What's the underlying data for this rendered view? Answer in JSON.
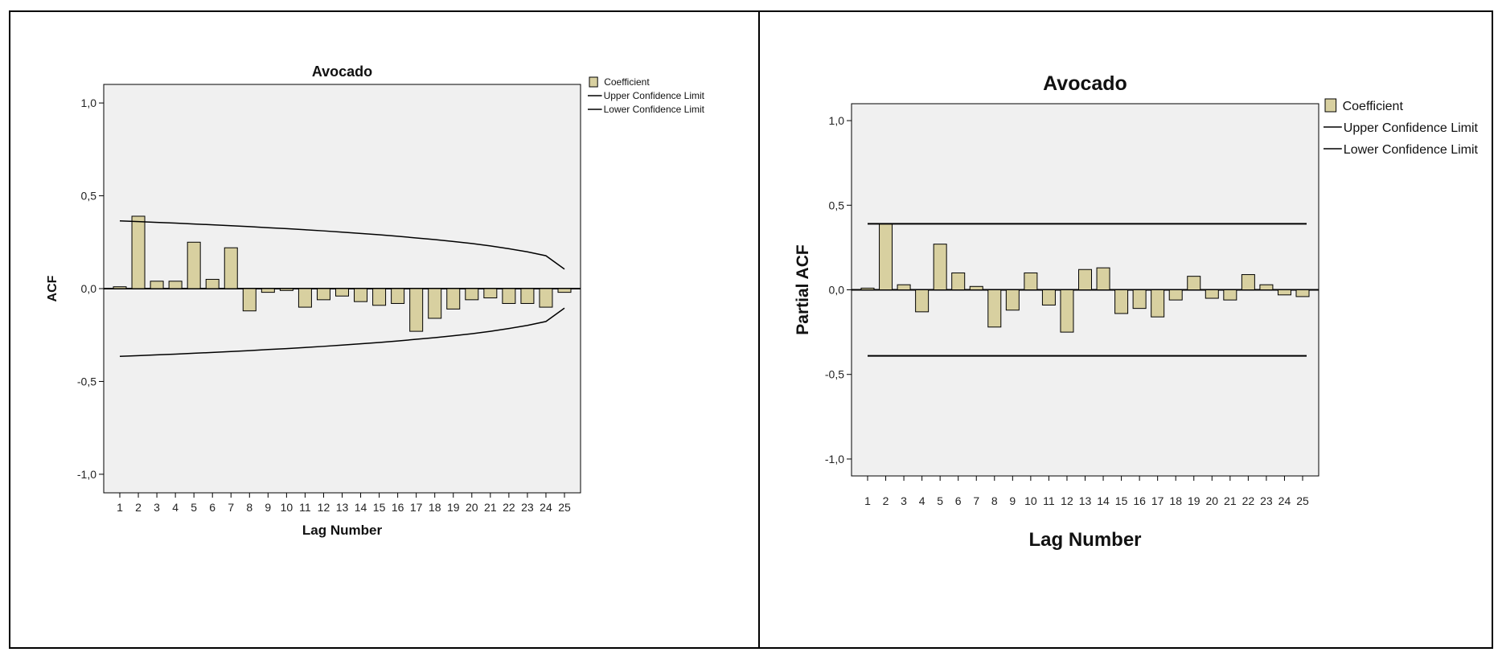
{
  "colors": {
    "bar_fill": "#d8d0a0",
    "bar_stroke": "#000000",
    "plot_bg": "#f0f0f0",
    "line": "#000000"
  },
  "chart_data": [
    {
      "type": "bar",
      "title": "Avocado",
      "xlabel": "Lag Number",
      "ylabel": "ACF",
      "ylim": [
        -1.1,
        1.1
      ],
      "yticks": [
        "1,0",
        "0,5",
        "0,0",
        "-0,5",
        "-1,0"
      ],
      "ytick_values": [
        1.0,
        0.5,
        0.0,
        -0.5,
        -1.0
      ],
      "categories": [
        "1",
        "2",
        "3",
        "4",
        "5",
        "6",
        "7",
        "8",
        "9",
        "10",
        "11",
        "12",
        "13",
        "14",
        "15",
        "16",
        "17",
        "18",
        "19",
        "20",
        "21",
        "22",
        "23",
        "24",
        "25"
      ],
      "series": [
        {
          "name": "Coefficient",
          "values": [
            0.01,
            0.39,
            0.04,
            0.04,
            0.25,
            0.05,
            0.22,
            -0.12,
            -0.02,
            -0.01,
            -0.1,
            -0.06,
            -0.04,
            -0.07,
            -0.09,
            -0.08,
            -0.23,
            -0.16,
            -0.11,
            -0.06,
            -0.05,
            -0.08,
            -0.08,
            -0.1,
            -0.02
          ]
        }
      ],
      "confidence_limits": {
        "upper": [
          0.365,
          0.361,
          0.357,
          0.353,
          0.348,
          0.344,
          0.339,
          0.334,
          0.328,
          0.323,
          0.317,
          0.311,
          0.304,
          0.297,
          0.29,
          0.282,
          0.273,
          0.264,
          0.254,
          0.243,
          0.23,
          0.215,
          0.198,
          0.177,
          0.105
        ],
        "lower": [
          -0.365,
          -0.361,
          -0.357,
          -0.353,
          -0.348,
          -0.344,
          -0.339,
          -0.334,
          -0.328,
          -0.323,
          -0.317,
          -0.311,
          -0.304,
          -0.297,
          -0.29,
          -0.282,
          -0.273,
          -0.264,
          -0.254,
          -0.243,
          -0.23,
          -0.215,
          -0.198,
          -0.177,
          -0.105
        ]
      },
      "legend": {
        "position": "top-right",
        "items": [
          "Coefficient",
          "Upper Confidence Limit",
          "Lower Confidence Limit"
        ]
      },
      "grid": false
    },
    {
      "type": "bar",
      "title": "Avocado",
      "xlabel": "Lag Number",
      "ylabel": "Partial ACF",
      "ylim": [
        -1.1,
        1.1
      ],
      "yticks": [
        "1,0",
        "0,5",
        "0,0",
        "-0,5",
        "-1,0"
      ],
      "ytick_values": [
        1.0,
        0.5,
        0.0,
        -0.5,
        -1.0
      ],
      "categories": [
        "1",
        "2",
        "3",
        "4",
        "5",
        "6",
        "7",
        "8",
        "9",
        "10",
        "11",
        "12",
        "13",
        "14",
        "15",
        "16",
        "17",
        "18",
        "19",
        "20",
        "21",
        "22",
        "23",
        "24",
        "25"
      ],
      "series": [
        {
          "name": "Coefficient",
          "values": [
            0.01,
            0.39,
            0.03,
            -0.13,
            0.27,
            0.1,
            0.02,
            -0.22,
            -0.12,
            0.1,
            -0.09,
            -0.25,
            0.12,
            0.13,
            -0.14,
            -0.11,
            -0.16,
            -0.06,
            0.08,
            -0.05,
            -0.06,
            0.09,
            0.03,
            -0.03,
            -0.04
          ]
        }
      ],
      "confidence_limits": {
        "upper": 0.39,
        "lower": -0.39
      },
      "legend": {
        "position": "top-right",
        "items": [
          "Coefficient",
          "Upper Confidence Limit",
          "Lower Confidence Limit"
        ]
      },
      "grid": false
    }
  ]
}
